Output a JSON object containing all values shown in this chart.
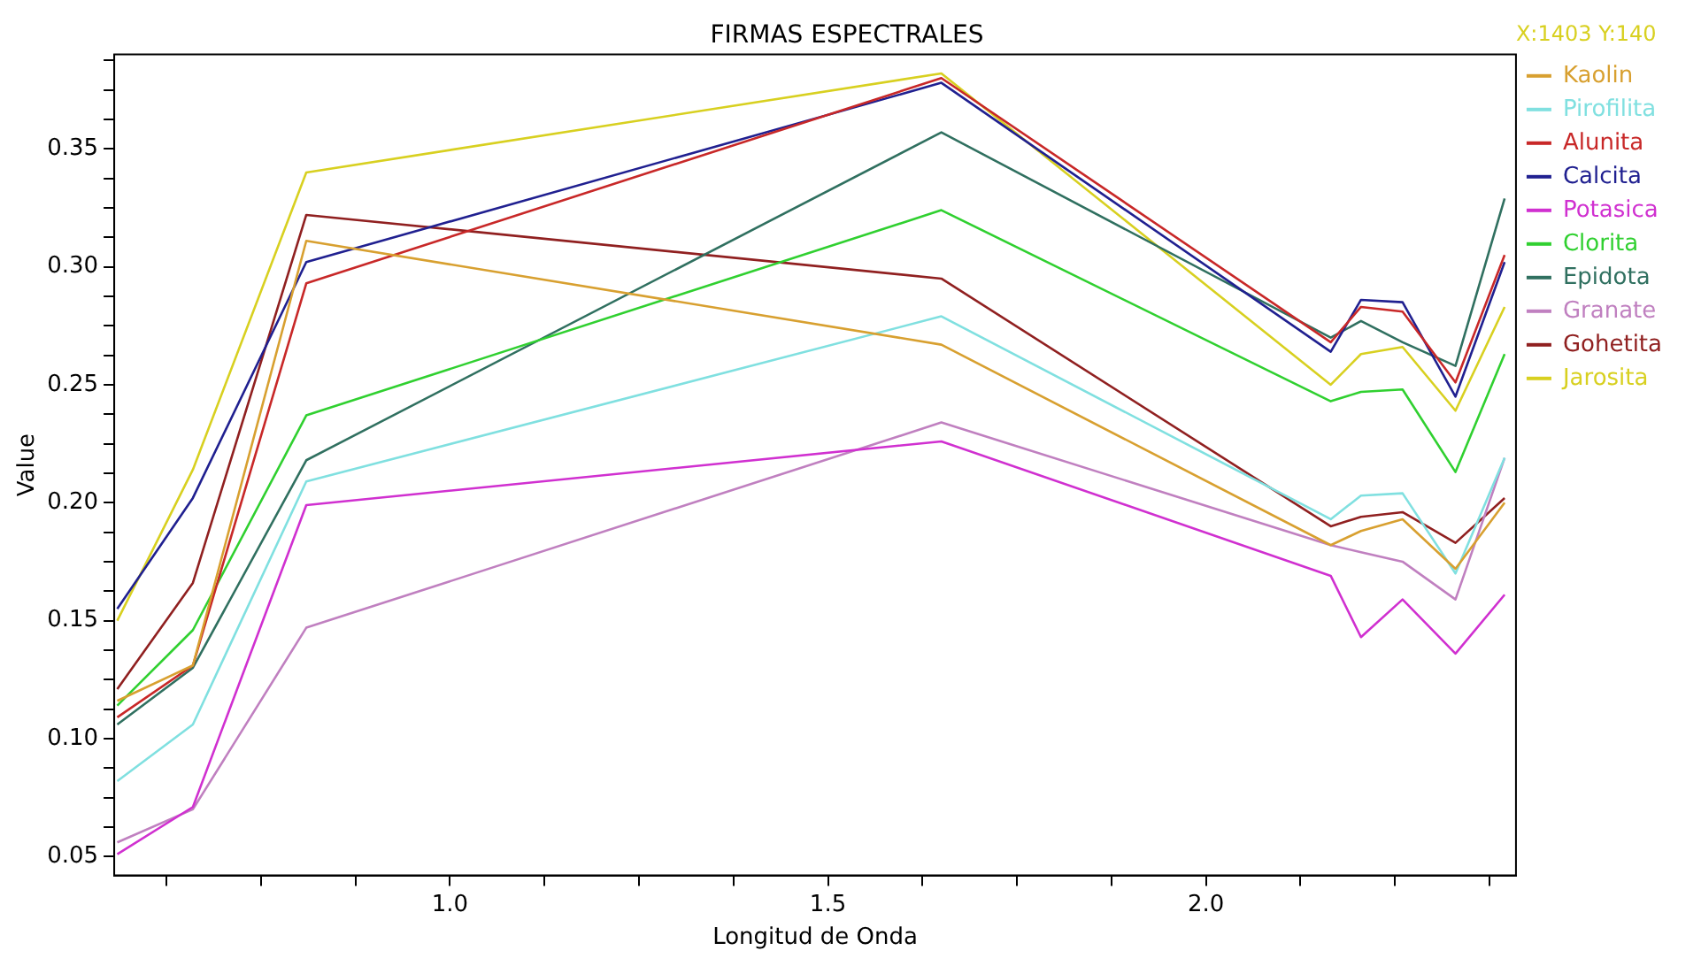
{
  "chart_data": {
    "type": "line",
    "title": "FIRMAS ESPECTRALES",
    "xlabel": "Longitud de Onda",
    "ylabel": "Value",
    "annotations": [
      "X:1403 Y:140"
    ],
    "x": [
      0.56,
      0.66,
      0.81,
      1.65,
      2.165,
      2.205,
      2.26,
      2.33,
      2.395
    ],
    "xlim": [
      0.556,
      2.41
    ],
    "xticks": [
      {
        "value": 0.625,
        "label": null
      },
      {
        "value": 0.75,
        "label": null
      },
      {
        "value": 0.875,
        "label": null
      },
      {
        "value": 1,
        "label": "1.0"
      },
      {
        "value": 1.125,
        "label": null
      },
      {
        "value": 1.25,
        "label": null
      },
      {
        "value": 1.375,
        "label": null
      },
      1.5,
      {
        "value": 1.625,
        "label": null
      },
      {
        "value": 1.75,
        "label": null
      },
      {
        "value": 1.875,
        "label": null
      },
      {
        "value": 2,
        "label": "2.0"
      },
      {
        "value": 2.125,
        "label": null
      },
      {
        "value": 2.25,
        "label": null
      },
      {
        "value": 2.375,
        "label": null
      }
    ],
    "ylim": [
      0.042,
      0.39
    ],
    "yticks": [
      0.05,
      {
        "value": 0.0625,
        "label": null
      },
      {
        "value": 0.075,
        "label": null
      },
      {
        "value": 0.0875,
        "label": null
      },
      {
        "value": 0.1,
        "label": "0.10"
      },
      {
        "value": 0.1125,
        "label": null
      },
      {
        "value": 0.125,
        "label": null
      },
      {
        "value": 0.1375,
        "label": null
      },
      0.15,
      {
        "value": 0.1625,
        "label": null
      },
      {
        "value": 0.175,
        "label": null
      },
      {
        "value": 0.1875,
        "label": null
      },
      {
        "value": 0.2,
        "label": "0.20"
      },
      {
        "value": 0.2125,
        "label": null
      },
      {
        "value": 0.225,
        "label": null
      },
      {
        "value": 0.2375,
        "label": null
      },
      0.25,
      {
        "value": 0.2625,
        "label": null
      },
      {
        "value": 0.275,
        "label": null
      },
      {
        "value": 0.2875,
        "label": null
      },
      {
        "value": 0.3,
        "label": "0.30"
      },
      {
        "value": 0.3125,
        "label": null
      },
      {
        "value": 0.325,
        "label": null
      },
      {
        "value": 0.3375,
        "label": null
      },
      0.35,
      {
        "value": 0.3625,
        "label": null
      },
      {
        "value": 0.375,
        "label": null
      },
      {
        "value": 0.3875,
        "label": null
      }
    ],
    "legend": "right",
    "marker": "none",
    "series": [
      {
        "name": "Kaolin",
        "color": "#d8a030",
        "values": [
          0.116,
          0.131,
          0.311,
          0.267,
          0.182,
          0.188,
          0.193,
          0.172,
          0.2
        ]
      },
      {
        "name": "Pirofilita",
        "color": "#80e0e0",
        "values": [
          0.082,
          0.106,
          0.209,
          0.279,
          0.193,
          0.203,
          0.204,
          0.17,
          0.219
        ]
      },
      {
        "name": "Alunita",
        "color": "#c82828",
        "values": [
          0.109,
          0.131,
          0.293,
          0.38,
          0.268,
          0.283,
          0.281,
          0.251,
          0.305
        ]
      },
      {
        "name": "Calcita",
        "color": "#202090",
        "values": [
          0.155,
          0.202,
          0.302,
          0.378,
          0.264,
          0.286,
          0.285,
          0.245,
          0.302
        ]
      },
      {
        "name": "Potasica",
        "color": "#d030d0",
        "values": [
          0.051,
          0.071,
          0.199,
          0.226,
          0.169,
          0.143,
          0.159,
          0.136,
          0.161
        ]
      },
      {
        "name": "Clorita",
        "color": "#30d030",
        "values": [
          0.114,
          0.146,
          0.237,
          0.324,
          0.243,
          0.247,
          0.248,
          0.213,
          0.263
        ]
      },
      {
        "name": "Epidota",
        "color": "#307060",
        "values": [
          0.106,
          0.13,
          0.218,
          0.357,
          0.27,
          0.277,
          0.268,
          0.258,
          0.329
        ]
      },
      {
        "name": "Granate",
        "color": "#c080c0",
        "values": [
          0.056,
          0.07,
          0.147,
          0.234,
          0.182,
          0.179,
          0.175,
          0.159,
          0.219
        ]
      },
      {
        "name": "Gohetita",
        "color": "#902020",
        "values": [
          0.121,
          0.166,
          0.322,
          0.295,
          0.19,
          0.194,
          0.196,
          0.183,
          0.202
        ]
      },
      {
        "name": "Jarosita",
        "color": "#d8d020",
        "values": [
          0.15,
          0.214,
          0.34,
          0.382,
          0.25,
          0.263,
          0.266,
          0.239,
          0.283
        ]
      }
    ]
  }
}
